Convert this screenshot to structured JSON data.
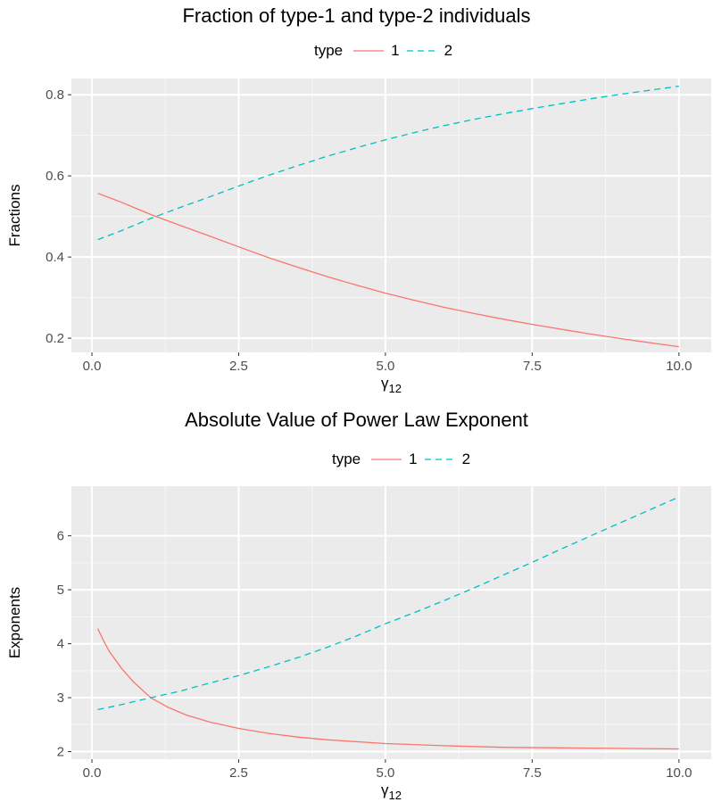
{
  "chart_data": [
    {
      "type": "line",
      "title": "Fraction of type-1 and type-2 individuals",
      "xlabel": "γ₁₂",
      "ylabel": "Fractions",
      "legend": {
        "title": "type",
        "placement": "top",
        "entries": [
          "1",
          "2"
        ]
      },
      "xlim": [
        -0.35,
        10.55
      ],
      "ylim": [
        0.165,
        0.84
      ],
      "x_ticks": [
        0,
        2.5,
        5,
        7.5,
        10
      ],
      "x_tick_labels": [
        "0.0",
        "2.5",
        "5.0",
        "7.5",
        "10.0"
      ],
      "y_ticks": [
        0.2,
        0.4,
        0.6,
        0.8
      ],
      "y_tick_labels": [
        "0.2",
        "0.4",
        "0.6",
        "0.8"
      ],
      "grid": true,
      "series": [
        {
          "name": "1",
          "color": "#F8766D",
          "dash": "solid",
          "x": [
            0.1,
            0.5,
            1,
            1.5,
            2,
            2.5,
            3,
            3.5,
            4,
            4.5,
            5,
            5.5,
            6,
            6.5,
            7,
            7.5,
            8,
            8.5,
            9,
            9.5,
            10
          ],
          "y": [
            0.557,
            0.535,
            0.505,
            0.478,
            0.452,
            0.425,
            0.399,
            0.375,
            0.352,
            0.331,
            0.311,
            0.293,
            0.276,
            0.261,
            0.247,
            0.234,
            0.222,
            0.21,
            0.199,
            0.189,
            0.179
          ]
        },
        {
          "name": "2",
          "color": "#00BFC4",
          "dash": "dashed",
          "x": [
            0.1,
            0.5,
            1,
            1.5,
            2,
            2.5,
            3,
            3.5,
            4,
            4.5,
            5,
            5.5,
            6,
            6.5,
            7,
            7.5,
            8,
            8.5,
            9,
            9.5,
            10
          ],
          "y": [
            0.443,
            0.465,
            0.495,
            0.522,
            0.548,
            0.575,
            0.601,
            0.625,
            0.648,
            0.669,
            0.689,
            0.707,
            0.724,
            0.739,
            0.753,
            0.766,
            0.778,
            0.79,
            0.801,
            0.811,
            0.821
          ]
        }
      ]
    },
    {
      "type": "line",
      "title": "Absolute Value of Power Law Exponent",
      "xlabel": "γ₁₂",
      "ylabel": "Exponents",
      "legend": {
        "title": "type",
        "placement": "top",
        "entries": [
          "1",
          "2"
        ]
      },
      "xlim": [
        -0.35,
        10.55
      ],
      "ylim": [
        1.86,
        6.92
      ],
      "x_ticks": [
        0,
        2.5,
        5,
        7.5,
        10
      ],
      "x_tick_labels": [
        "0.0",
        "2.5",
        "5.0",
        "7.5",
        "10.0"
      ],
      "y_ticks": [
        2,
        3,
        4,
        5,
        6
      ],
      "y_tick_labels": [
        "2",
        "3",
        "4",
        "5",
        "6"
      ],
      "grid": true,
      "series": [
        {
          "name": "1",
          "color": "#F8766D",
          "dash": "solid",
          "x": [
            0.1,
            0.2,
            0.3,
            0.5,
            0.7,
            1,
            1.3,
            1.6,
            2,
            2.5,
            3,
            3.5,
            4,
            5,
            6,
            7,
            8,
            9,
            10
          ],
          "y": [
            4.28,
            4.05,
            3.85,
            3.55,
            3.3,
            3.0,
            2.82,
            2.68,
            2.55,
            2.43,
            2.34,
            2.27,
            2.22,
            2.15,
            2.11,
            2.08,
            2.07,
            2.06,
            2.05
          ]
        },
        {
          "name": "2",
          "color": "#00BFC4",
          "dash": "dashed",
          "x": [
            0.1,
            0.5,
            1,
            1.5,
            2,
            2.5,
            3,
            3.5,
            4,
            4.5,
            5,
            5.5,
            6,
            6.5,
            7,
            7.5,
            8,
            8.5,
            9,
            9.5,
            10
          ],
          "y": [
            2.78,
            2.87,
            3.0,
            3.12,
            3.27,
            3.41,
            3.57,
            3.74,
            3.93,
            4.14,
            4.37,
            4.58,
            4.8,
            5.03,
            5.27,
            5.51,
            5.76,
            6.0,
            6.24,
            6.48,
            6.72
          ]
        }
      ]
    }
  ]
}
